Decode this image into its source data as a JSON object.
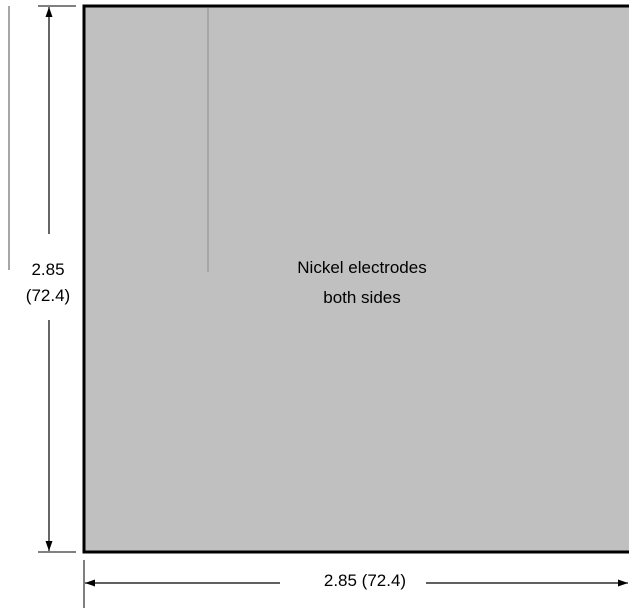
{
  "plate": {
    "note_line1": "Nickel electrodes",
    "note_line2": "both sides",
    "fill_color": "#c0c0c0",
    "outline_color": "#000000"
  },
  "dimensions": {
    "height_value": "2.85",
    "height_metric": "(72.4)",
    "width_label": "2.85  (72.4)",
    "line_color": "#000000"
  }
}
